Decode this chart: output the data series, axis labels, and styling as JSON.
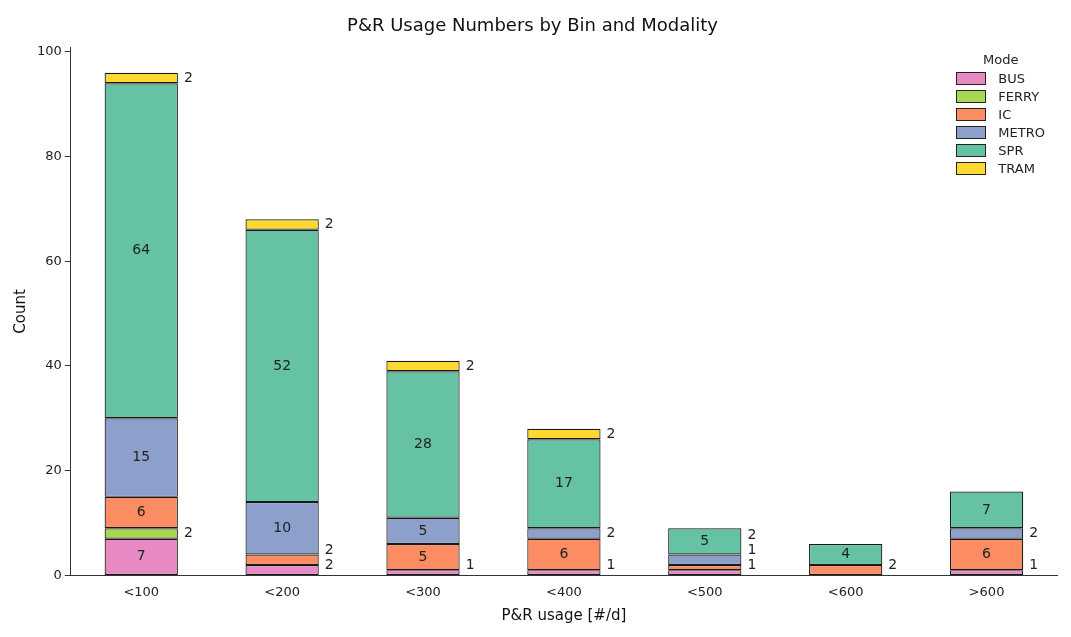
{
  "chart_data": {
    "type": "bar",
    "title": "P&R Usage Numbers by Bin and Modality",
    "xlabel": "P&R usage [#/d]",
    "ylabel": "Count",
    "legend_title": "Mode",
    "categories": [
      "<100",
      "<200",
      "<300",
      "<400",
      "<500",
      "<600",
      ">600"
    ],
    "stacked": true,
    "data_labels": true,
    "legend": "top right",
    "grid": false,
    "ylim": [
      0,
      100.8
    ],
    "yticks": [
      0,
      20,
      40,
      60,
      80,
      100
    ],
    "series": [
      {
        "name": "BUS",
        "color": "#e78ac3",
        "values": [
          7,
          2,
          1,
          1,
          1,
          null,
          1
        ]
      },
      {
        "name": "FERRY",
        "color": "#a6d854",
        "values": [
          2,
          null,
          null,
          null,
          null,
          null,
          null
        ]
      },
      {
        "name": "IC",
        "color": "#fc8d62",
        "values": [
          6,
          2,
          5,
          6,
          1,
          2,
          6
        ]
      },
      {
        "name": "METRO",
        "color": "#8da0cb",
        "values": [
          15,
          10,
          5,
          2,
          2,
          null,
          2
        ]
      },
      {
        "name": "SPR",
        "color": "#66c2a5",
        "values": [
          64,
          52,
          28,
          17,
          5,
          4,
          7
        ]
      },
      {
        "name": "TRAM",
        "color": "#ffd92f",
        "values": [
          2,
          2,
          2,
          2,
          null,
          null,
          null
        ]
      }
    ]
  }
}
